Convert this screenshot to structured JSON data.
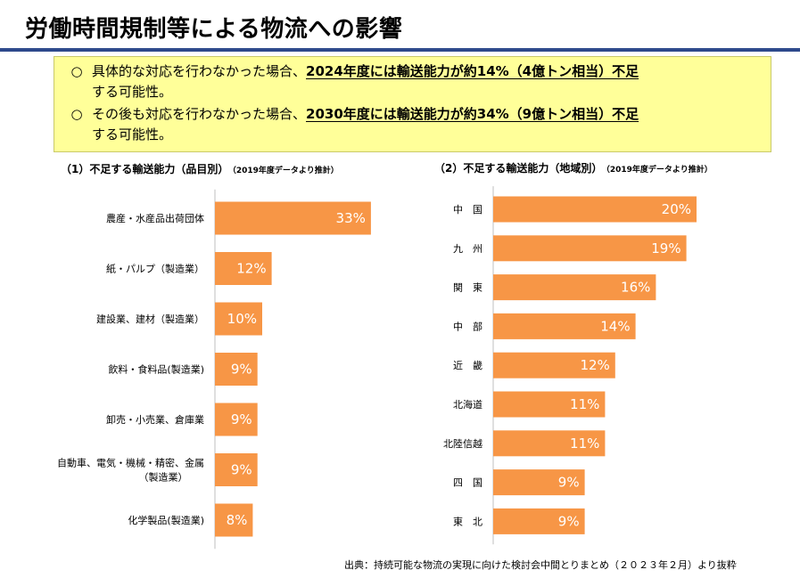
{
  "header": {
    "title": "労働時間規制等による物流への影響"
  },
  "callout": {
    "items": [
      {
        "mark": "○",
        "prefix": "具体的な対応を行わなかった場合、",
        "highlight": "2024年度には輸送能力が約14%（4億トン相当）不足",
        "suffix": "する可能性。"
      },
      {
        "mark": "○",
        "prefix": "その後も対応を行わなかった場合、",
        "highlight": "2030年度には輸送能力が約34%（9億トン相当）不足",
        "suffix": "する可能性。"
      }
    ]
  },
  "charts": {
    "left_heading": "（1）不足する輸送能力（品目別）",
    "left_note": "（2019年度データより推計）",
    "right_heading": "（2）不足する輸送能力（地域別）",
    "right_note": "（2019年度データより推計）"
  },
  "chart_data": [
    {
      "type": "bar",
      "orientation": "horizontal",
      "title": "（1）不足する輸送能力（品目別）",
      "categories": [
        [
          "農産・水産品出荷団体"
        ],
        [
          "紙・パルプ（製造業）"
        ],
        [
          "建設業、建材（製造業）"
        ],
        [
          "飲料・食料品(製造業)"
        ],
        [
          "卸売・小売業、倉庫業"
        ],
        [
          "自動車、電気・機械・精密、金属",
          "（製造業）"
        ],
        [
          "化学製品(製造業)"
        ]
      ],
      "values": [
        33,
        12,
        10,
        9,
        9,
        9,
        8
      ],
      "value_labels": [
        "33%",
        "12%",
        "10%",
        "9%",
        "9%",
        "9%",
        "8%"
      ],
      "unit": "%",
      "bar_color": "#f79646",
      "xlim": [
        0,
        40
      ]
    },
    {
      "type": "bar",
      "orientation": "horizontal",
      "title": "（2）不足する輸送能力（地域別）",
      "categories": [
        [
          "中　国"
        ],
        [
          "九　州"
        ],
        [
          "関　東"
        ],
        [
          "中　部"
        ],
        [
          "近　畿"
        ],
        [
          "北海道"
        ],
        [
          "北陸信越"
        ],
        [
          "四　国"
        ],
        [
          "東　北"
        ]
      ],
      "values": [
        20,
        19,
        16,
        14,
        12,
        11,
        11,
        9,
        9
      ],
      "value_labels": [
        "20%",
        "19%",
        "16%",
        "14%",
        "12%",
        "11%",
        "11%",
        "9%",
        "9%"
      ],
      "unit": "%",
      "bar_color": "#f79646",
      "xlim": [
        0,
        40
      ]
    }
  ],
  "footer": {
    "source": "出典：持続可能な物流の実現に向けた検討会中間とりまとめ（２０２３年２月）より抜粋"
  }
}
